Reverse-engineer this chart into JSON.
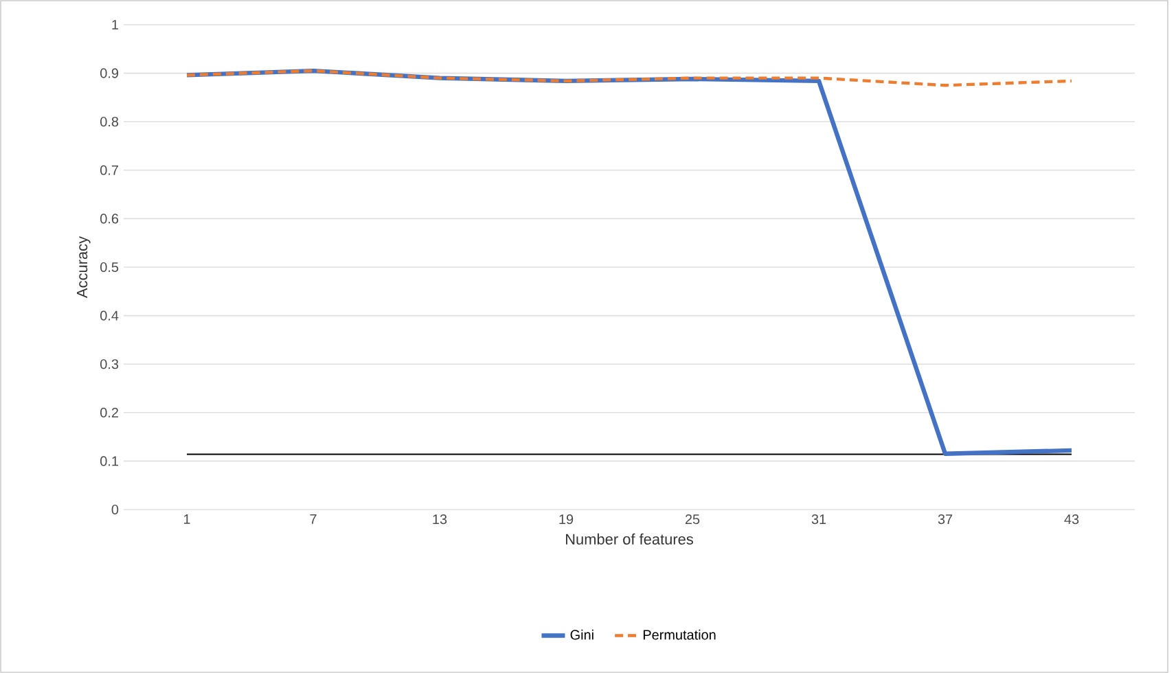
{
  "chart_data": {
    "type": "line",
    "xlabel": "Number of features",
    "ylabel": "Accuracy",
    "categories": [
      "1",
      "7",
      "13",
      "19",
      "25",
      "31",
      "37",
      "43"
    ],
    "series": [
      {
        "name": "Gini",
        "color": "#4472c4",
        "line_style": "solid",
        "values": [
          0.896,
          0.905,
          0.89,
          0.884,
          0.888,
          0.884,
          0.115,
          0.122
        ]
      },
      {
        "name": "Permutation",
        "color": "#ed7d31",
        "line_style": "dashed",
        "values": [
          0.896,
          0.905,
          0.89,
          0.884,
          0.89,
          0.89,
          0.875,
          0.884
        ]
      }
    ],
    "ref_lines": [
      {
        "axis": "y",
        "value": 0.114,
        "color": "#000000"
      }
    ],
    "ylim": [
      0,
      1
    ],
    "yticks": [
      0,
      0.1,
      0.2,
      0.3,
      0.4,
      0.5,
      0.6,
      0.7,
      0.8,
      0.9,
      1
    ],
    "grid": "y",
    "legend": "bottom",
    "marker": "none"
  }
}
